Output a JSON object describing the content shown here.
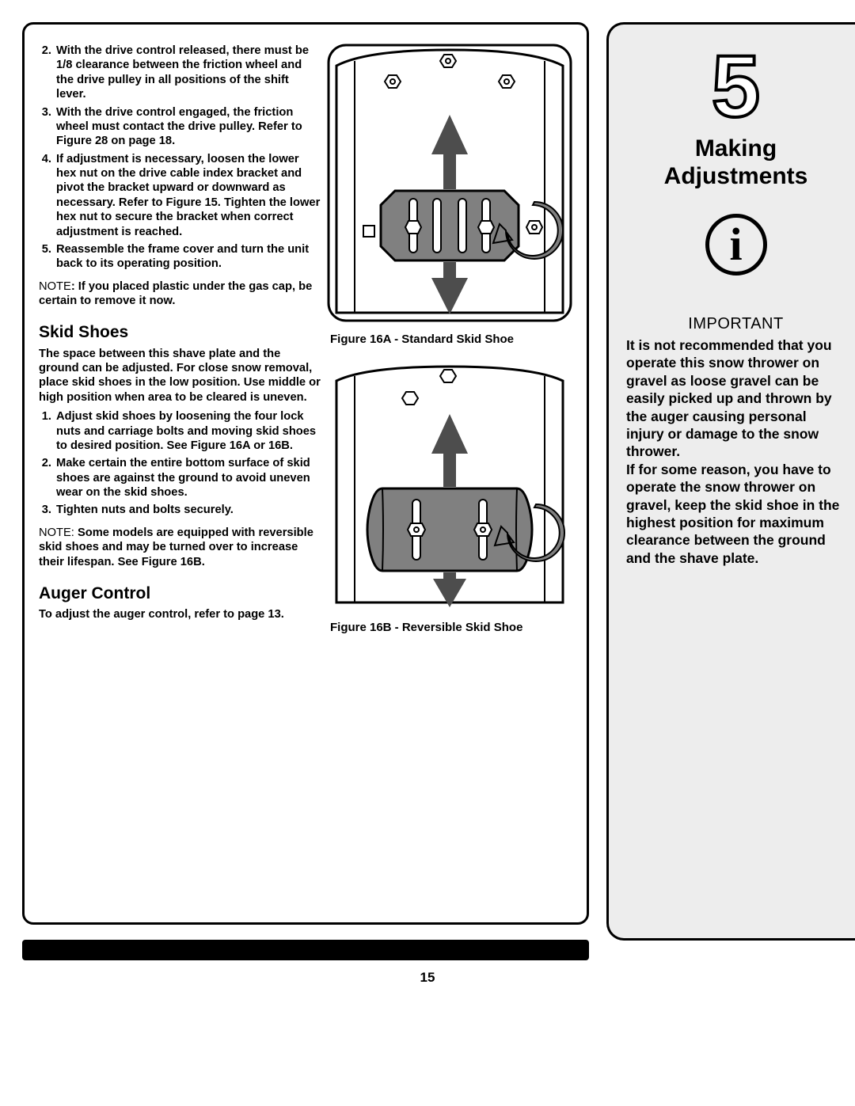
{
  "ol1": [
    {
      "n": "2.",
      "t": "With the drive control released, there must be 1/8 clearance between the friction wheel and the drive pulley in all positions of the shift lever."
    },
    {
      "n": "3.",
      "t": "With the drive control engaged, the friction wheel must contact the drive pulley. Refer to Figure 28 on page 18."
    },
    {
      "n": "4.",
      "t": "If adjustment is necessary, loosen the lower hex nut on the drive cable index bracket and pivot the bracket upward or downward as necessary. Refer to Figure 15. Tighten the lower hex nut to secure the bracket when correct adjustment is reached."
    },
    {
      "n": "5.",
      "t": "Reassemble the frame cover and turn the unit back to its operating position."
    }
  ],
  "note1_lead": "NOTE",
  "note1_body": ": If you placed plastic under the gas cap, be certain to remove it now.",
  "skid_h": "Skid Shoes",
  "skid_intro": "The space between this shave plate and the ground can be adjusted. For close snow removal, place skid shoes in the low position. Use middle or high position when area to be cleared is uneven.",
  "ol2": [
    {
      "n": "1.",
      "t": "Adjust skid shoes by loosening the four lock nuts and carriage bolts and moving skid shoes to desired position. See Figure 16A or 16B."
    },
    {
      "n": "2.",
      "t": "Make certain the entire bottom surface of skid shoes are against the ground to avoid uneven wear on the skid shoes."
    },
    {
      "n": "3.",
      "t": "Tighten nuts and bolts securely."
    }
  ],
  "note2_lead": "NOTE:  ",
  "note2_body": "Some models are equipped with reversible skid shoes and may be turned over to increase their lifespan. See Figure 16B.",
  "auger_h": "Auger Control",
  "auger_p": "To adjust the auger control, refer to page 13.",
  "fig_a_cap": "Figure 16A - Standard Skid Shoe",
  "fig_b_cap": "Figure 16B - Reversible Skid Shoe",
  "sidebar_num": "5",
  "sidebar_title": "Making Adjustments",
  "info_glyph": "i",
  "important_h": "IMPORTANT",
  "important_body": "It is not recommended that you operate this snow thrower on gravel as loose gravel can be easily picked up and thrown by the auger causing personal injury or damage to the snow thrower.\nIf for some reason, you have to operate the snow thrower on gravel, keep the skid shoe in the highest position for maximum clearance between the ground and the shave plate.",
  "page_number": "15",
  "svg": {
    "stroke": "#000000",
    "fill_grey": "#808080",
    "fill_dark": "#4d4d4d",
    "fill_white": "#ffffff"
  }
}
